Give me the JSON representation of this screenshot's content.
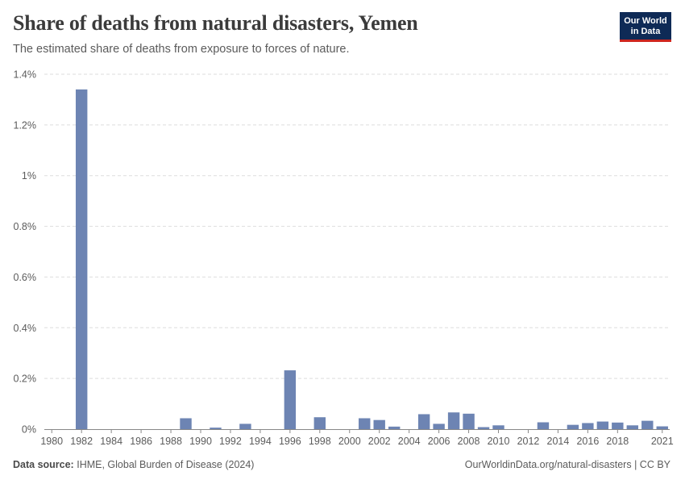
{
  "header": {
    "title": "Share of deaths from natural disasters, Yemen",
    "subtitle": "The estimated share of deaths from exposure to forces of nature.",
    "logo_line1": "Our World",
    "logo_line2": "in Data"
  },
  "footer": {
    "source_label": "Data source:",
    "source_text": "IHME, Global Burden of Disease (2024)",
    "right_text": "OurWorldinData.org/natural-disasters | CC BY"
  },
  "colors": {
    "bar": "#6d84b3",
    "grid": "#dddddd",
    "axis": "#888888"
  },
  "chart_data": {
    "type": "bar",
    "title": "Share of deaths from natural disasters, Yemen",
    "ylabel": "",
    "xlabel": "",
    "ylim": [
      0,
      1.4
    ],
    "y_ticks": [
      0,
      0.2,
      0.4,
      0.6,
      0.8,
      1,
      1.2,
      1.4
    ],
    "y_tick_labels": [
      "0%",
      "0.2%",
      "0.4%",
      "0.6%",
      "0.8%",
      "1%",
      "1.2%",
      "1.4%"
    ],
    "x_ticks": [
      1980,
      1982,
      1984,
      1986,
      1988,
      1990,
      1992,
      1994,
      1996,
      1998,
      2000,
      2002,
      2004,
      2006,
      2008,
      2010,
      2012,
      2014,
      2016,
      2018,
      2021
    ],
    "xlim": [
      1980,
      2021
    ],
    "unit": "%",
    "categories": [
      1980,
      1981,
      1982,
      1983,
      1984,
      1985,
      1986,
      1987,
      1988,
      1989,
      1990,
      1991,
      1992,
      1993,
      1994,
      1995,
      1996,
      1997,
      1998,
      1999,
      2000,
      2001,
      2002,
      2003,
      2004,
      2005,
      2006,
      2007,
      2008,
      2009,
      2010,
      2011,
      2012,
      2013,
      2014,
      2015,
      2016,
      2017,
      2018,
      2019,
      2020,
      2021
    ],
    "values": [
      0,
      0,
      1.34,
      0,
      0,
      0,
      0,
      0,
      0,
      0.043,
      0,
      0.006,
      0,
      0.021,
      0,
      0,
      0.232,
      0,
      0.047,
      0,
      0,
      0.043,
      0.036,
      0.01,
      0,
      0.059,
      0.021,
      0.066,
      0.061,
      0.008,
      0.015,
      0,
      0,
      0.027,
      0,
      0.017,
      0.024,
      0.03,
      0.026,
      0.015,
      0.033,
      0.011
    ]
  }
}
